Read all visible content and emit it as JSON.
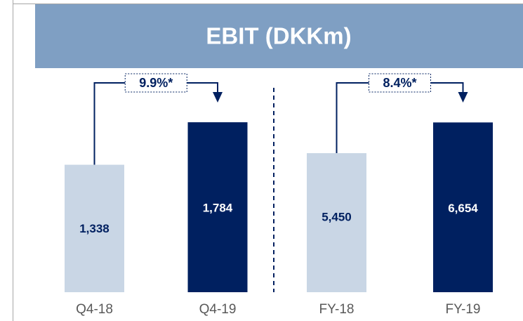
{
  "title": "EBIT (DKKm)",
  "chart_data": [
    {
      "type": "bar",
      "categories": [
        "Q4-18",
        "Q4-19"
      ],
      "values": [
        1338,
        1784
      ],
      "value_labels": [
        "1,338",
        "1,784"
      ],
      "colors": [
        "#c9d6e5",
        "#002060"
      ],
      "ylim": [
        0,
        2330
      ],
      "annotation": "9.9%*"
    },
    {
      "type": "bar",
      "categories": [
        "FY-18",
        "FY-19"
      ],
      "values": [
        5450,
        6654
      ],
      "value_labels": [
        "5,450",
        "6,654"
      ],
      "colors": [
        "#c9d6e5",
        "#002060"
      ],
      "ylim": [
        0,
        8700
      ],
      "annotation": "8.4%*"
    }
  ]
}
